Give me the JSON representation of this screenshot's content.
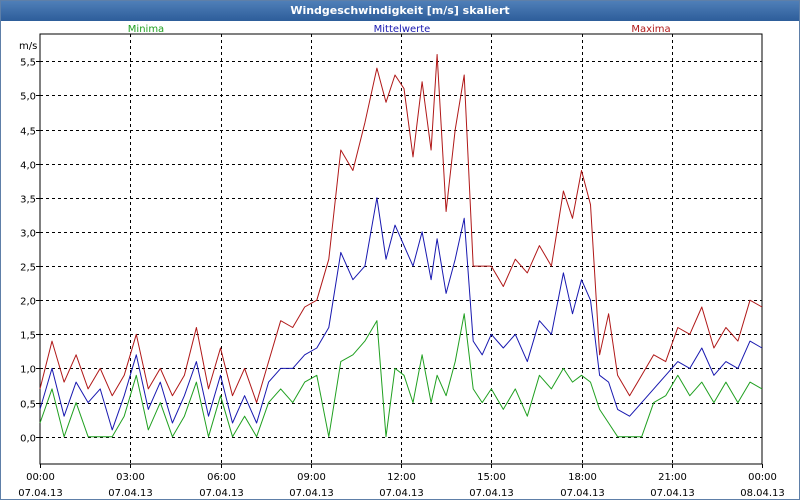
{
  "window": {
    "title": "Windgeschwindigkeit [m/s] skaliert"
  },
  "chart_data": {
    "type": "line",
    "title": "Windgeschwindigkeit [m/s] skaliert",
    "ylabel": "m/s",
    "xlabel": "",
    "ylim": [
      -0.4,
      5.9
    ],
    "xlim": [
      0,
      24
    ],
    "grid": true,
    "y_ticks": [
      {
        "v": 0.0,
        "label": "0,0"
      },
      {
        "v": 0.5,
        "label": "0,5"
      },
      {
        "v": 1.0,
        "label": "1,0"
      },
      {
        "v": 1.5,
        "label": "1,5"
      },
      {
        "v": 2.0,
        "label": "2,0"
      },
      {
        "v": 2.5,
        "label": "2,5"
      },
      {
        "v": 3.0,
        "label": "3,0"
      },
      {
        "v": 3.5,
        "label": "3,5"
      },
      {
        "v": 4.0,
        "label": "4,0"
      },
      {
        "v": 4.5,
        "label": "4,5"
      },
      {
        "v": 5.0,
        "label": "5,0"
      },
      {
        "v": 5.5,
        "label": "5,5"
      }
    ],
    "x_ticks": [
      {
        "v": 0,
        "time": "00:00",
        "date": "07.04.13"
      },
      {
        "v": 3,
        "time": "03:00",
        "date": "07.04.13"
      },
      {
        "v": 6,
        "time": "06:00",
        "date": "07.04.13"
      },
      {
        "v": 9,
        "time": "09:00",
        "date": "07.04.13"
      },
      {
        "v": 12,
        "time": "12:00",
        "date": "07.04.13"
      },
      {
        "v": 15,
        "time": "15:00",
        "date": "07.04.13"
      },
      {
        "v": 18,
        "time": "18:00",
        "date": "07.04.13"
      },
      {
        "v": 21,
        "time": "21:00",
        "date": "07.04.13"
      },
      {
        "v": 24,
        "time": "00:00",
        "date": "08.04.13"
      }
    ],
    "series": [
      {
        "name": "Maxima",
        "color": "#b01818",
        "legend_pos": "top-right",
        "x": [
          0,
          0.4,
          0.8,
          1.2,
          1.6,
          2.0,
          2.4,
          2.8,
          3.2,
          3.6,
          4.0,
          4.4,
          4.8,
          5.2,
          5.6,
          6.0,
          6.4,
          6.8,
          7.2,
          7.6,
          8.0,
          8.4,
          8.8,
          9.2,
          9.6,
          10.0,
          10.4,
          10.8,
          11.2,
          11.5,
          11.8,
          12.1,
          12.4,
          12.7,
          13.0,
          13.2,
          13.5,
          13.8,
          14.1,
          14.4,
          14.7,
          15.0,
          15.4,
          15.8,
          16.2,
          16.6,
          17.0,
          17.4,
          17.7,
          18.0,
          18.3,
          18.6,
          18.9,
          19.2,
          19.6,
          20.0,
          20.4,
          20.8,
          21.2,
          21.6,
          22.0,
          22.4,
          22.8,
          23.2,
          23.6,
          24.0
        ],
        "values": [
          0.7,
          1.4,
          0.8,
          1.2,
          0.7,
          1.0,
          0.6,
          0.9,
          1.5,
          0.7,
          1.0,
          0.6,
          0.9,
          1.6,
          0.7,
          1.3,
          0.6,
          1.0,
          0.5,
          1.1,
          1.7,
          1.6,
          1.9,
          2.0,
          2.6,
          4.2,
          3.9,
          4.6,
          5.4,
          4.9,
          5.3,
          5.1,
          4.1,
          5.2,
          4.2,
          5.6,
          3.3,
          4.5,
          5.3,
          2.5,
          2.5,
          2.5,
          2.2,
          2.6,
          2.4,
          2.8,
          2.5,
          3.6,
          3.2,
          3.9,
          3.4,
          1.2,
          1.8,
          0.9,
          0.6,
          0.9,
          1.2,
          1.1,
          1.6,
          1.5,
          1.9,
          1.3,
          1.6,
          1.4,
          2.0,
          1.9
        ]
      },
      {
        "name": "Mittelwerte",
        "color": "#1818b0",
        "legend_pos": "top-center",
        "x": [
          0,
          0.4,
          0.8,
          1.2,
          1.6,
          2.0,
          2.4,
          2.8,
          3.2,
          3.6,
          4.0,
          4.4,
          4.8,
          5.2,
          5.6,
          6.0,
          6.4,
          6.8,
          7.2,
          7.6,
          8.0,
          8.4,
          8.8,
          9.2,
          9.6,
          10.0,
          10.4,
          10.8,
          11.2,
          11.5,
          11.8,
          12.1,
          12.4,
          12.7,
          13.0,
          13.2,
          13.5,
          13.8,
          14.1,
          14.4,
          14.7,
          15.0,
          15.4,
          15.8,
          16.2,
          16.6,
          17.0,
          17.4,
          17.7,
          18.0,
          18.3,
          18.6,
          18.9,
          19.2,
          19.6,
          20.0,
          20.4,
          20.8,
          21.2,
          21.6,
          22.0,
          22.4,
          22.8,
          23.2,
          23.6,
          24.0
        ],
        "values": [
          0.4,
          1.0,
          0.3,
          0.8,
          0.5,
          0.7,
          0.1,
          0.6,
          1.2,
          0.4,
          0.8,
          0.2,
          0.6,
          1.1,
          0.3,
          0.9,
          0.2,
          0.6,
          0.2,
          0.8,
          1.0,
          1.0,
          1.2,
          1.3,
          1.6,
          2.7,
          2.3,
          2.5,
          3.5,
          2.6,
          3.1,
          2.8,
          2.5,
          3.0,
          2.3,
          2.9,
          2.1,
          2.6,
          3.2,
          1.4,
          1.2,
          1.5,
          1.3,
          1.5,
          1.1,
          1.7,
          1.5,
          2.4,
          1.8,
          2.3,
          2.0,
          0.9,
          0.8,
          0.4,
          0.3,
          0.5,
          0.7,
          0.9,
          1.1,
          1.0,
          1.3,
          0.9,
          1.1,
          1.0,
          1.4,
          1.3
        ]
      },
      {
        "name": "Minima",
        "color": "#20a020",
        "legend_pos": "top-left",
        "x": [
          0,
          0.4,
          0.8,
          1.2,
          1.6,
          2.0,
          2.4,
          2.8,
          3.2,
          3.6,
          4.0,
          4.4,
          4.8,
          5.2,
          5.6,
          6.0,
          6.4,
          6.8,
          7.2,
          7.6,
          8.0,
          8.4,
          8.8,
          9.2,
          9.6,
          10.0,
          10.4,
          10.8,
          11.2,
          11.5,
          11.8,
          12.1,
          12.4,
          12.7,
          13.0,
          13.2,
          13.5,
          13.8,
          14.1,
          14.4,
          14.7,
          15.0,
          15.4,
          15.8,
          16.2,
          16.6,
          17.0,
          17.4,
          17.7,
          18.0,
          18.3,
          18.6,
          18.9,
          19.2,
          19.6,
          20.0,
          20.4,
          20.8,
          21.2,
          21.6,
          22.0,
          22.4,
          22.8,
          23.2,
          23.6,
          24.0
        ],
        "values": [
          0.2,
          0.7,
          0.0,
          0.5,
          0.0,
          0.0,
          0.0,
          0.3,
          0.9,
          0.1,
          0.5,
          0.0,
          0.3,
          0.8,
          0.0,
          0.6,
          0.0,
          0.3,
          0.0,
          0.5,
          0.7,
          0.5,
          0.8,
          0.9,
          0.0,
          1.1,
          1.2,
          1.4,
          1.7,
          0.0,
          1.0,
          0.9,
          0.5,
          1.2,
          0.5,
          0.9,
          0.6,
          1.1,
          1.8,
          0.7,
          0.5,
          0.7,
          0.4,
          0.7,
          0.3,
          0.9,
          0.7,
          1.0,
          0.8,
          0.9,
          0.8,
          0.4,
          0.2,
          0.0,
          0.0,
          0.0,
          0.5,
          0.6,
          0.9,
          0.6,
          0.8,
          0.5,
          0.8,
          0.5,
          0.8,
          0.7
        ]
      }
    ]
  }
}
